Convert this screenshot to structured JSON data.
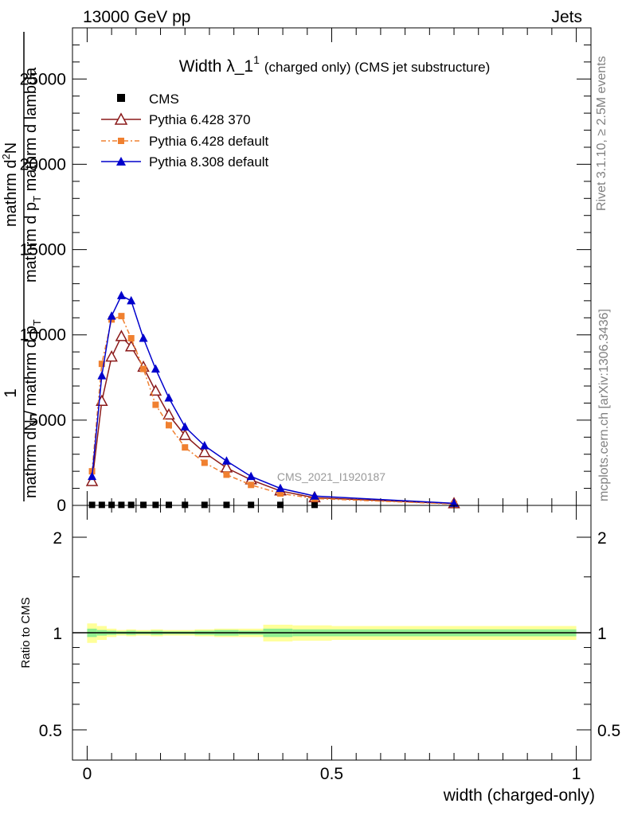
{
  "header": {
    "left": "13000 GeV pp",
    "right": "Jets"
  },
  "side_labels": {
    "rivet": "Rivet 3.1.10, ≥ 2.5M events",
    "mcplots": "mcplots.cern.ch [arXiv:1306.3436]"
  },
  "watermark": "CMS_2021_I1920187",
  "chart_data": [
    {
      "type": "line",
      "title": "Width λ_1¹ (charged only) (CMS jet substructure)",
      "title_main": "Width λ_1",
      "title_sup": "1",
      "title_rest": "(charged only) (CMS jet substructure)",
      "ylabel": "1 / mathrm dN / mathrm d p_T mathrm d N / mathrm d p_T mathrm d lambda",
      "ylabel_parts": {
        "frac_num": "1",
        "frac_den": "mathrm dN / mathrm d p",
        "frac_den_sub": "T",
        "main_line1": "mathrm d",
        "main_line1_sup": "2",
        "main_line1_rest": "N",
        "main_line2": "mathrm d p",
        "main_line2_sub": "T",
        "main_line2_rest": " mathrm d lambda"
      },
      "xlim": [
        -0.03,
        1.03
      ],
      "ylim": [
        0,
        28000
      ],
      "yticks": [
        0,
        5000,
        10000,
        15000,
        20000,
        25000
      ],
      "ytick_labels": [
        "0",
        "5000",
        "10000",
        "15000",
        "20000",
        "25000"
      ],
      "legend_placement": "top-left",
      "x": [
        0.01,
        0.03,
        0.05,
        0.07,
        0.09,
        0.115,
        0.14,
        0.167,
        0.2,
        0.24,
        0.285,
        0.335,
        0.395,
        0.465,
        0.75
      ],
      "series": [
        {
          "name": "CMS",
          "color": "#000000",
          "marker": "square",
          "values": [
            30,
            30,
            30,
            30,
            30,
            30,
            30,
            30,
            30,
            30,
            30,
            30,
            30,
            30,
            30
          ]
        },
        {
          "name": "Pythia 6.428 370",
          "color": "#8b1a1a",
          "marker": "triangle-open",
          "line": "solid",
          "values": [
            1400,
            6100,
            8700,
            9900,
            9300,
            8100,
            6700,
            5300,
            4100,
            3100,
            2200,
            1500,
            850,
            450,
            100
          ]
        },
        {
          "name": "Pythia 6.428 default",
          "color": "#f08030",
          "marker": "square",
          "line": "dashdot",
          "values": [
            2000,
            8300,
            10900,
            11100,
            9800,
            8000,
            5900,
            4700,
            3400,
            2500,
            1800,
            1200,
            700,
            400,
            80
          ]
        },
        {
          "name": "Pythia 8.308 default",
          "color": "#0000cc",
          "marker": "triangle",
          "line": "solid",
          "values": [
            1700,
            7600,
            11100,
            12300,
            12000,
            9800,
            8000,
            6300,
            4600,
            3500,
            2600,
            1700,
            1000,
            550,
            120
          ]
        }
      ]
    },
    {
      "type": "area",
      "ylabel": "Ratio to CMS",
      "xlabel": "width (charged-only)",
      "xlim": [
        -0.03,
        1.03
      ],
      "ylim": [
        0.35,
        2.3
      ],
      "xticks": [
        0,
        0.5,
        1
      ],
      "xtick_labels": [
        "0",
        "0.5",
        "1"
      ],
      "yticks": [
        0.5,
        1,
        2
      ],
      "ytick_labels": [
        "0.5",
        "1",
        "2"
      ],
      "band_edges": [
        0,
        0.02,
        0.04,
        0.06,
        0.08,
        0.1,
        0.13,
        0.155,
        0.18,
        0.22,
        0.26,
        0.31,
        0.36,
        0.42,
        0.5,
        1.0
      ],
      "band_stat_low": [
        0.97,
        0.98,
        0.985,
        0.99,
        0.985,
        0.99,
        0.985,
        0.99,
        0.99,
        0.985,
        0.98,
        0.985,
        0.97,
        0.975,
        0.975
      ],
      "band_stat_high": [
        1.03,
        1.02,
        1.015,
        1.01,
        1.015,
        1.01,
        1.015,
        1.01,
        1.01,
        1.015,
        1.02,
        1.015,
        1.03,
        1.025,
        1.025
      ],
      "band_tot_low": [
        0.93,
        0.95,
        0.97,
        0.98,
        0.975,
        0.98,
        0.975,
        0.98,
        0.98,
        0.975,
        0.97,
        0.97,
        0.94,
        0.945,
        0.95
      ],
      "band_tot_high": [
        1.07,
        1.05,
        1.03,
        1.02,
        1.025,
        1.02,
        1.025,
        1.02,
        1.02,
        1.025,
        1.03,
        1.03,
        1.06,
        1.055,
        1.05
      ],
      "stat_color": "#90ee90",
      "total_color": "#ffff99"
    }
  ]
}
